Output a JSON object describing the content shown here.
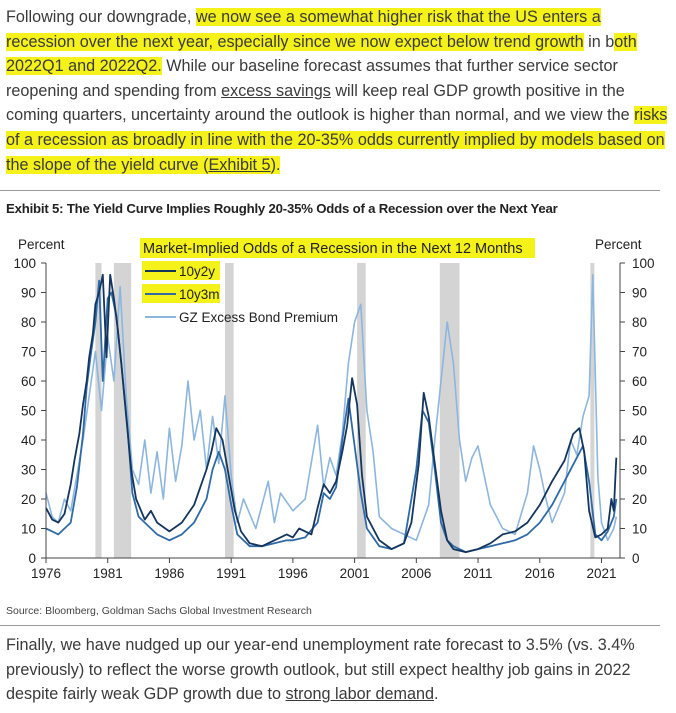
{
  "paragraph1": {
    "s1": "Following our downgrade, ",
    "s2": "we now see a somewhat higher risk that the US enters a recession over the next year, especially since we now expect below trend growth",
    "s3": " in b",
    "s4": "oth 2022Q1 and 2022Q2.",
    "s5": " While our baseline forecast assumes that further service sector reopening and spending from ",
    "s6": "excess savings",
    "s7": " will keep real GDP growth positive in the coming quarters, uncertainty around the outlook is higher than normal, and we view the ",
    "s8": "risks of a recession as broadly in line with the 20-35% odds currently implied by models based on the slope of the yield curve (",
    "s9": "Exhibit 5",
    "s10": ").",
    "highlight_color": "#f5f21a"
  },
  "exhibit_title": "Exhibit 5: The Yield Curve Implies Roughly 20-35% Odds of a Recession over the Next Year",
  "source": "Source: Bloomberg, Goldman Sachs Global Investment Research",
  "paragraph2": {
    "s1": "Finally, we have nudged up our year-end unemployment rate forecast to 3.5% (vs. 3.4% previously) to reflect the worse growth outlook, but still expect healthy job gains in 2022 despite fairly weak GDP growth due to ",
    "s2": "strong labor demand",
    "s3": "."
  },
  "chart_data": {
    "type": "line",
    "title": "Market-Implied Odds of a Recession in the Next 12 Months",
    "ylabel_left": "Percent",
    "ylabel_right": "Percent",
    "ylim": [
      0,
      100
    ],
    "yticks": [
      0,
      10,
      20,
      30,
      40,
      50,
      60,
      70,
      80,
      90,
      100
    ],
    "xlim": [
      1976,
      2022.5
    ],
    "xticks": [
      1976,
      1981,
      1986,
      1991,
      1996,
      2001,
      2006,
      2011,
      2016,
      2021
    ],
    "legend_position": "top-left",
    "recessions": [
      [
        1980.0,
        1980.5
      ],
      [
        1981.5,
        1982.9
      ],
      [
        1990.5,
        1991.2
      ],
      [
        2001.2,
        2001.9
      ],
      [
        2007.9,
        2009.5
      ],
      [
        2020.1,
        2020.4
      ]
    ],
    "series": [
      {
        "name": "10y2y",
        "color": "#14365e",
        "x": [
          1976,
          1976.5,
          1977,
          1977.5,
          1978,
          1978.3,
          1978.7,
          1979,
          1979.3,
          1979.5,
          1979.8,
          1980,
          1980.3,
          1980.6,
          1980.9,
          1981.2,
          1981.5,
          1981.8,
          1982.1,
          1982.5,
          1982.9,
          1983.3,
          1984,
          1984.5,
          1985,
          1986,
          1987,
          1988,
          1988.5,
          1989,
          1989.4,
          1989.8,
          1990.3,
          1990.8,
          1991.3,
          1991.8,
          1992.5,
          1993.5,
          1994.5,
          1995.5,
          1996,
          1996.5,
          1997,
          1997.5,
          1998,
          1998.5,
          1999,
          1999.5,
          2000,
          2000.4,
          2000.8,
          2001.2,
          2001.6,
          2002,
          2003,
          2004,
          2005,
          2005.6,
          2006.2,
          2006.6,
          2007,
          2007.5,
          2008,
          2008.5,
          2009,
          2010,
          2011,
          2012,
          2013,
          2014,
          2015,
          2016,
          2017,
          2018,
          2018.7,
          2019.2,
          2019.6,
          2020,
          2020.5,
          2021,
          2021.5,
          2021.8,
          2022,
          2022.2
        ],
        "y": [
          17,
          13,
          12,
          15,
          25,
          33,
          42,
          52,
          60,
          68,
          76,
          86,
          90,
          96,
          68,
          96,
          88,
          78,
          66,
          48,
          30,
          20,
          13,
          16,
          12,
          9,
          12,
          18,
          24,
          30,
          36,
          44,
          40,
          28,
          16,
          9,
          5,
          4,
          6,
          8,
          7,
          10,
          9,
          8,
          17,
          25,
          22,
          26,
          36,
          45,
          61,
          52,
          28,
          14,
          6,
          3,
          5,
          12,
          32,
          56,
          48,
          32,
          16,
          6,
          3,
          2,
          3,
          5,
          8,
          9,
          12,
          18,
          26,
          33,
          42,
          44,
          36,
          16,
          7,
          8,
          10,
          20,
          16,
          34
        ]
      },
      {
        "name": "10y3m",
        "color": "#2f6aa6",
        "x": [
          1976,
          1976.5,
          1977,
          1977.5,
          1978,
          1978.5,
          1979,
          1979.3,
          1979.6,
          1980,
          1980.3,
          1980.6,
          1981,
          1981.3,
          1981.7,
          1982.1,
          1982.6,
          1983,
          1983.5,
          1984,
          1985,
          1986,
          1987,
          1988,
          1989,
          1989.5,
          1990,
          1990.5,
          1991,
          1991.5,
          1992.5,
          1993.5,
          1994.5,
          1995.5,
          1996,
          1997,
          1998,
          1998.5,
          1999,
          1999.5,
          2000,
          2000.5,
          2001,
          2001.5,
          2002,
          2003,
          2004,
          2005,
          2006,
          2006.5,
          2007,
          2007.5,
          2008,
          2008.5,
          2009,
          2010,
          2011,
          2012,
          2013,
          2014,
          2015,
          2016,
          2017,
          2018,
          2019,
          2019.5,
          2020,
          2020.5,
          2021,
          2021.5,
          2022,
          2022.2
        ],
        "y": [
          10,
          9,
          8,
          10,
          12,
          24,
          42,
          58,
          68,
          80,
          94,
          60,
          88,
          90,
          82,
          66,
          44,
          22,
          14,
          12,
          8,
          6,
          8,
          12,
          20,
          30,
          36,
          30,
          18,
          8,
          4,
          4,
          5,
          6,
          6,
          7,
          12,
          22,
          20,
          24,
          40,
          54,
          38,
          22,
          10,
          4,
          3,
          5,
          30,
          50,
          46,
          30,
          12,
          6,
          4,
          2,
          3,
          4,
          5,
          6,
          8,
          12,
          18,
          26,
          34,
          38,
          26,
          8,
          6,
          9,
          14,
          20
        ]
      },
      {
        "name": "GZ Excess Bond Premium",
        "color": "#8db6de",
        "x": [
          1976,
          1976.5,
          1977,
          1977.5,
          1978,
          1978.5,
          1979,
          1979.5,
          1980,
          1980.5,
          1981,
          1981.5,
          1982,
          1982.5,
          1983,
          1983.5,
          1984,
          1984.5,
          1985,
          1985.5,
          1986,
          1986.5,
          1987,
          1987.5,
          1988,
          1988.5,
          1989,
          1989.5,
          1990,
          1990.5,
          1991,
          1991.5,
          1992,
          1993,
          1994,
          1994.5,
          1995,
          1996,
          1997,
          1998,
          1998.5,
          1999,
          1999.5,
          2000,
          2000.5,
          2001,
          2001.5,
          2002,
          2002.5,
          2003,
          2004,
          2005,
          2006,
          2007,
          2007.5,
          2008,
          2008.5,
          2009,
          2009.5,
          2010,
          2010.5,
          2011,
          2011.5,
          2012,
          2013,
          2014,
          2015,
          2015.5,
          2016,
          2016.5,
          2017,
          2018,
          2018.5,
          2019,
          2019.5,
          2020,
          2020.3,
          2020.7,
          2021,
          2021.5,
          2022,
          2022.2
        ],
        "y": [
          22,
          14,
          12,
          20,
          16,
          28,
          40,
          55,
          70,
          50,
          75,
          60,
          92,
          55,
          30,
          25,
          40,
          22,
          36,
          20,
          44,
          26,
          38,
          60,
          40,
          50,
          30,
          48,
          32,
          55,
          28,
          12,
          20,
          10,
          26,
          12,
          22,
          16,
          20,
          45,
          24,
          34,
          28,
          42,
          66,
          80,
          86,
          50,
          36,
          14,
          10,
          8,
          6,
          18,
          40,
          60,
          80,
          66,
          40,
          26,
          34,
          38,
          28,
          18,
          10,
          8,
          22,
          38,
          30,
          20,
          12,
          22,
          40,
          35,
          48,
          55,
          96,
          28,
          12,
          6,
          10,
          14
        ]
      }
    ]
  }
}
